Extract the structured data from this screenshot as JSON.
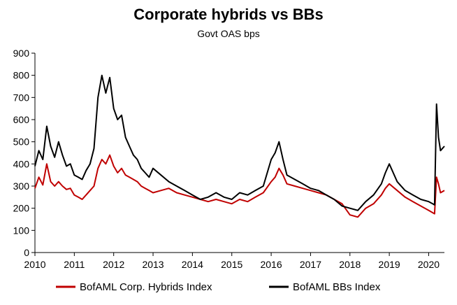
{
  "chart_data": {
    "type": "line",
    "title": "Corporate hybrids vs BBs",
    "subtitle": "Govt OAS bps",
    "xlabel": "",
    "ylabel": "",
    "xlim": [
      2010,
      2020.4
    ],
    "ylim": [
      0,
      900
    ],
    "yticks": [
      0,
      100,
      200,
      300,
      400,
      500,
      600,
      700,
      800,
      900
    ],
    "xticks": [
      2010,
      2011,
      2012,
      2013,
      2014,
      2015,
      2016,
      2017,
      2018,
      2019,
      2020
    ],
    "grid": false,
    "legend_position": "bottom",
    "series": [
      {
        "name": "BofAML Corp. Hybrids Index",
        "color": "#c00000",
        "x": [
          2010.0,
          2010.1,
          2010.2,
          2010.3,
          2010.4,
          2010.5,
          2010.6,
          2010.7,
          2010.8,
          2010.9,
          2011.0,
          2011.1,
          2011.2,
          2011.3,
          2011.4,
          2011.5,
          2011.6,
          2011.7,
          2011.8,
          2011.9,
          2012.0,
          2012.1,
          2012.2,
          2012.3,
          2012.4,
          2012.5,
          2012.6,
          2012.7,
          2012.8,
          2012.9,
          2013.0,
          2013.2,
          2013.4,
          2013.6,
          2013.8,
          2014.0,
          2014.2,
          2014.4,
          2014.6,
          2014.8,
          2015.0,
          2015.2,
          2015.4,
          2015.6,
          2015.8,
          2016.0,
          2016.1,
          2016.2,
          2016.3,
          2016.4,
          2016.6,
          2016.8,
          2017.0,
          2017.2,
          2017.4,
          2017.6,
          2017.8,
          2018.0,
          2018.2,
          2018.4,
          2018.6,
          2018.8,
          2018.9,
          2019.0,
          2019.2,
          2019.4,
          2019.6,
          2019.8,
          2020.0,
          2020.1,
          2020.15,
          2020.2,
          2020.25,
          2020.3,
          2020.4
        ],
        "values": [
          290,
          340,
          305,
          400,
          320,
          300,
          320,
          300,
          285,
          290,
          260,
          250,
          240,
          260,
          280,
          300,
          380,
          420,
          400,
          440,
          390,
          360,
          380,
          350,
          340,
          330,
          320,
          300,
          290,
          280,
          270,
          280,
          290,
          270,
          260,
          250,
          240,
          230,
          240,
          230,
          220,
          240,
          230,
          250,
          270,
          320,
          340,
          380,
          350,
          310,
          300,
          290,
          280,
          270,
          260,
          240,
          220,
          170,
          160,
          200,
          220,
          260,
          290,
          310,
          280,
          250,
          230,
          210,
          190,
          180,
          175,
          340,
          310,
          270,
          280
        ]
      },
      {
        "name": "BofAML BBs Index",
        "color": "#000000",
        "x": [
          2010.0,
          2010.1,
          2010.2,
          2010.3,
          2010.4,
          2010.5,
          2010.6,
          2010.7,
          2010.8,
          2010.9,
          2011.0,
          2011.1,
          2011.2,
          2011.3,
          2011.4,
          2011.5,
          2011.6,
          2011.7,
          2011.8,
          2011.9,
          2012.0,
          2012.1,
          2012.2,
          2012.3,
          2012.4,
          2012.5,
          2012.6,
          2012.7,
          2012.8,
          2012.9,
          2013.0,
          2013.2,
          2013.4,
          2013.6,
          2013.8,
          2014.0,
          2014.2,
          2014.4,
          2014.6,
          2014.8,
          2015.0,
          2015.2,
          2015.4,
          2015.6,
          2015.8,
          2016.0,
          2016.1,
          2016.2,
          2016.3,
          2016.4,
          2016.6,
          2016.8,
          2017.0,
          2017.2,
          2017.4,
          2017.6,
          2017.8,
          2018.0,
          2018.2,
          2018.4,
          2018.6,
          2018.8,
          2018.9,
          2019.0,
          2019.2,
          2019.4,
          2019.6,
          2019.8,
          2020.0,
          2020.1,
          2020.15,
          2020.2,
          2020.25,
          2020.3,
          2020.4
        ],
        "values": [
          390,
          460,
          420,
          570,
          480,
          430,
          500,
          440,
          390,
          400,
          350,
          340,
          330,
          370,
          400,
          470,
          700,
          800,
          720,
          790,
          650,
          600,
          620,
          520,
          480,
          440,
          420,
          380,
          360,
          340,
          380,
          350,
          320,
          300,
          280,
          260,
          240,
          250,
          270,
          250,
          240,
          270,
          260,
          280,
          300,
          420,
          450,
          500,
          420,
          350,
          330,
          310,
          290,
          280,
          260,
          240,
          210,
          200,
          190,
          230,
          260,
          310,
          360,
          400,
          320,
          280,
          260,
          240,
          230,
          220,
          215,
          670,
          520,
          460,
          480
        ]
      }
    ]
  }
}
